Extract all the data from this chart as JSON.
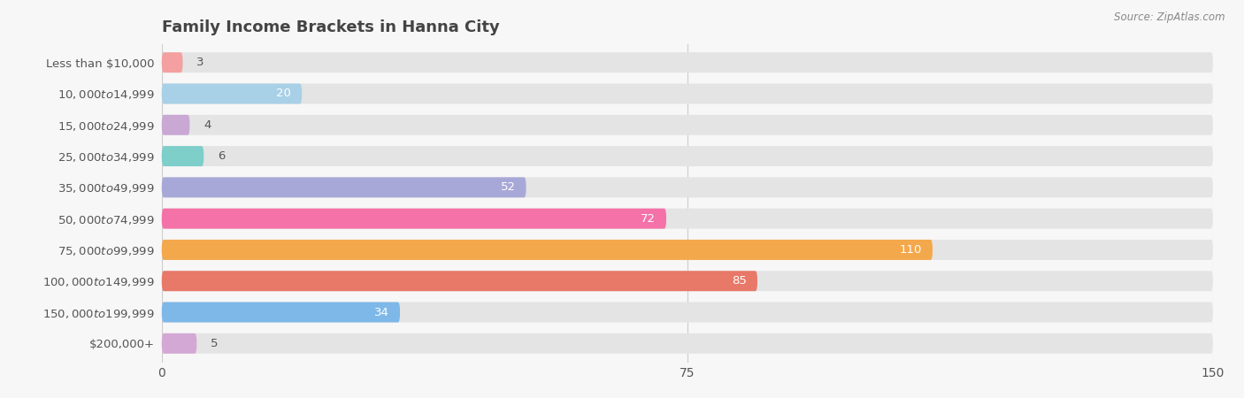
{
  "title": "Family Income Brackets in Hanna City",
  "source": "Source: ZipAtlas.com",
  "categories": [
    "Less than $10,000",
    "$10,000 to $14,999",
    "$15,000 to $24,999",
    "$25,000 to $34,999",
    "$35,000 to $49,999",
    "$50,000 to $74,999",
    "$75,000 to $99,999",
    "$100,000 to $149,999",
    "$150,000 to $199,999",
    "$200,000+"
  ],
  "values": [
    3,
    20,
    4,
    6,
    52,
    72,
    110,
    85,
    34,
    5
  ],
  "bar_colors": [
    "#F4A0A0",
    "#A8D0E6",
    "#C9A8D4",
    "#7ECECA",
    "#A8A8D8",
    "#F472A8",
    "#F4A84C",
    "#E87868",
    "#7EB8E8",
    "#D4A8D4"
  ],
  "xlim": [
    0,
    150
  ],
  "xticks": [
    0,
    75,
    150
  ],
  "bg_color": "#f7f7f7",
  "bar_bg_color": "#e4e4e4",
  "title_color": "#444444",
  "label_color": "#555555",
  "value_color_inside": "#ffffff",
  "value_color_outside": "#555555",
  "title_fontsize": 13,
  "label_fontsize": 9.5,
  "value_fontsize": 9.5,
  "tick_fontsize": 10,
  "inside_threshold": 15
}
